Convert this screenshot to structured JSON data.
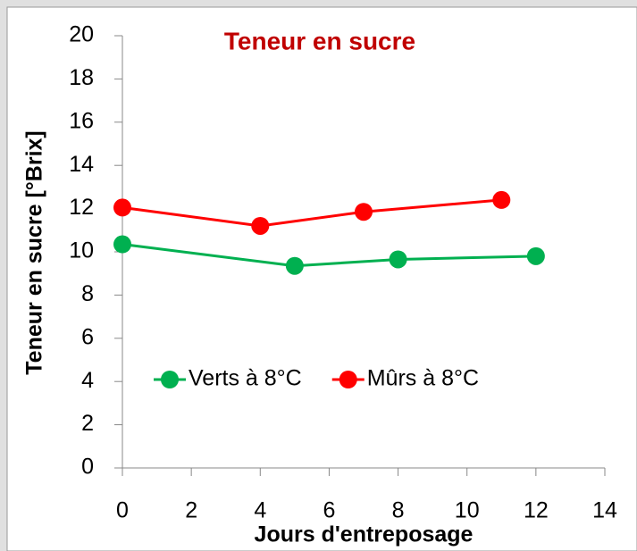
{
  "chart_data": {
    "type": "line",
    "title": "Teneur en sucre",
    "title_color": "#c00000",
    "xlabel": "Jours d'entreposage",
    "ylabel": "Teneur en sucre [°Brix]",
    "xlim": [
      0,
      14
    ],
    "xticks": [
      0,
      2,
      4,
      6,
      8,
      10,
      12,
      14
    ],
    "ylim": [
      0,
      20
    ],
    "yticks": [
      0,
      2,
      4,
      6,
      8,
      10,
      12,
      14,
      16,
      18,
      20
    ],
    "legend": "lower left",
    "series": [
      {
        "name": "Verts à 8°C",
        "color": "#00b050",
        "x": [
          0,
          5,
          8,
          12
        ],
        "values": [
          10.35,
          9.35,
          9.65,
          9.8
        ]
      },
      {
        "name": "Mûrs à 8°C",
        "color": "#ff0000",
        "x": [
          0,
          4,
          7,
          11
        ],
        "values": [
          12.05,
          11.2,
          11.85,
          12.4
        ]
      }
    ]
  }
}
